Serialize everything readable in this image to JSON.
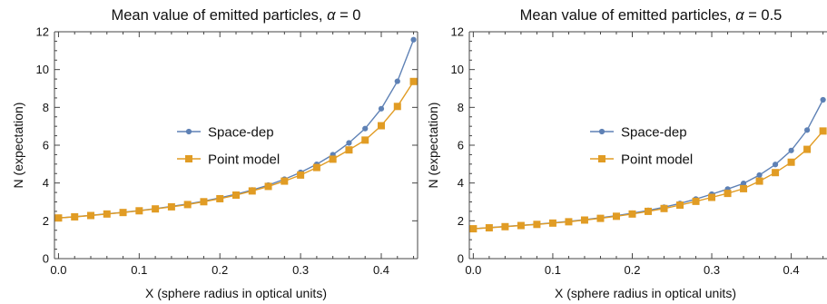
{
  "colors": {
    "space_dep": "#5e81b5",
    "point_model": "#e19c24",
    "frame": "#444444"
  },
  "chart_data": [
    {
      "type": "line",
      "title": "Mean value of emitted particles, α = 0",
      "xlabel": "X (sphere radius in optical units)",
      "ylabel": "N (expectation)",
      "xlim": [
        -0.005,
        0.445
      ],
      "ylim": [
        0,
        12
      ],
      "xticks": [
        0.0,
        0.1,
        0.2,
        0.3,
        0.4
      ],
      "xtick_labels": [
        "0.0",
        "0.1",
        "0.2",
        "0.3",
        "0.4"
      ],
      "yticks": [
        0,
        2,
        4,
        6,
        8,
        10,
        12
      ],
      "ytick_labels": [
        "0",
        "2",
        "4",
        "6",
        "8",
        "10",
        "12"
      ],
      "grid": false,
      "legend": "center-left",
      "x": [
        0.0,
        0.02,
        0.04,
        0.06,
        0.08,
        0.1,
        0.12,
        0.14,
        0.16,
        0.18,
        0.2,
        0.22,
        0.24,
        0.26,
        0.28,
        0.3,
        0.32,
        0.34,
        0.36,
        0.38,
        0.4,
        0.42,
        0.44
      ],
      "series": [
        {
          "name": "Space-dep",
          "marker": "circle",
          "values": [
            2.15,
            2.22,
            2.29,
            2.37,
            2.45,
            2.54,
            2.64,
            2.76,
            2.89,
            3.04,
            3.21,
            3.41,
            3.63,
            3.89,
            4.2,
            4.56,
            4.99,
            5.5,
            6.12,
            6.88,
            7.93,
            9.38,
            11.58
          ]
        },
        {
          "name": "Point model",
          "marker": "square",
          "values": [
            2.15,
            2.21,
            2.28,
            2.36,
            2.44,
            2.53,
            2.63,
            2.74,
            2.86,
            3.01,
            3.17,
            3.36,
            3.58,
            3.82,
            4.1,
            4.42,
            4.82,
            5.26,
            5.75,
            6.27,
            7.03,
            8.05,
            9.37
          ]
        }
      ]
    },
    {
      "type": "line",
      "title": "Mean value of emitted particles, α = 0.5",
      "xlabel": "X (sphere radius in optical units)",
      "ylabel": "N (expectation)",
      "xlim": [
        -0.005,
        0.445
      ],
      "ylim": [
        0,
        12
      ],
      "xticks": [
        0.0,
        0.1,
        0.2,
        0.3,
        0.4
      ],
      "xtick_labels": [
        "0.0",
        "0.1",
        "0.2",
        "0.3",
        "0.4"
      ],
      "yticks": [
        0,
        2,
        4,
        6,
        8,
        10,
        12
      ],
      "ytick_labels": [
        "0",
        "2",
        "4",
        "6",
        "8",
        "10",
        "12"
      ],
      "grid": false,
      "legend": "center-left",
      "x": [
        0.0,
        0.02,
        0.04,
        0.06,
        0.08,
        0.1,
        0.12,
        0.14,
        0.16,
        0.18,
        0.2,
        0.22,
        0.24,
        0.26,
        0.28,
        0.3,
        0.32,
        0.34,
        0.36,
        0.38,
        0.4,
        0.42,
        0.44
      ],
      "series": [
        {
          "name": "Space-dep",
          "marker": "circle",
          "values": [
            1.58,
            1.64,
            1.7,
            1.76,
            1.82,
            1.89,
            1.97,
            2.06,
            2.16,
            2.27,
            2.4,
            2.55,
            2.72,
            2.92,
            3.15,
            3.41,
            3.68,
            3.98,
            4.42,
            4.98,
            5.72,
            6.8,
            8.4
          ]
        },
        {
          "name": "Point model",
          "marker": "square",
          "values": [
            1.58,
            1.63,
            1.69,
            1.75,
            1.81,
            1.88,
            1.95,
            2.04,
            2.13,
            2.24,
            2.36,
            2.5,
            2.65,
            2.83,
            3.03,
            3.24,
            3.45,
            3.7,
            4.1,
            4.55,
            5.1,
            5.78,
            6.75
          ]
        }
      ]
    }
  ]
}
